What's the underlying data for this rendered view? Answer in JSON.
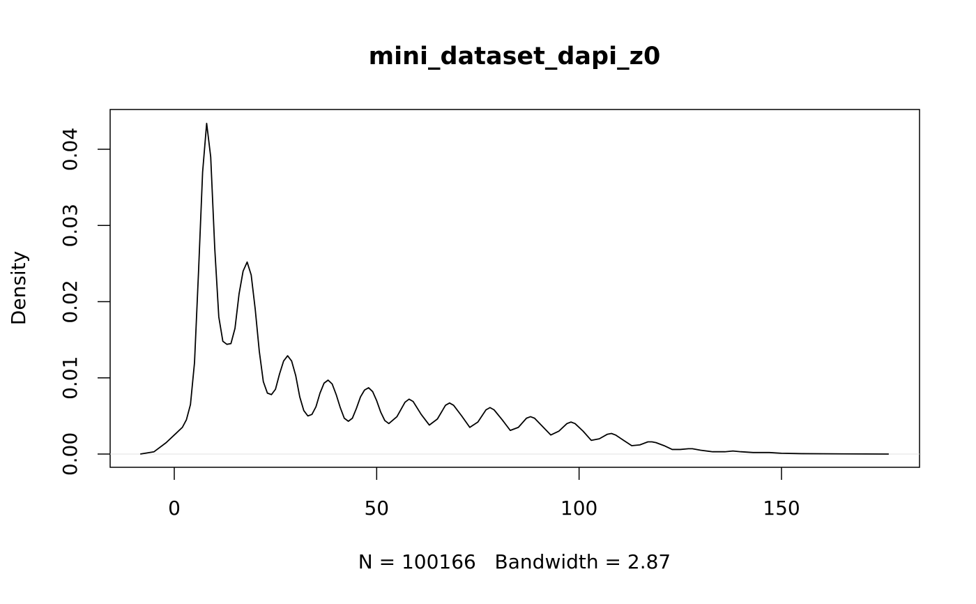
{
  "chart_data": {
    "type": "line",
    "title": "mini_dataset_dapi_z0",
    "x_label": "N = 100166   Bandwidth = 2.87",
    "y_label": "Density",
    "color": "#000000",
    "zero_line": true,
    "zero_line_color": "#e0e0e0",
    "xlim": [
      -15.84,
      184.1
    ],
    "ylim": [
      -0.00174,
      0.04522
    ],
    "xticks": [
      0,
      50,
      100,
      150
    ],
    "yticks": [
      {
        "value": 0,
        "label": "0.00"
      },
      {
        "value": 0.01,
        "label": "0.01"
      },
      {
        "value": 0.02,
        "label": "0.02"
      },
      {
        "value": 0.03,
        "label": "0.03"
      },
      {
        "value": 0.04,
        "label": "0.04"
      }
    ],
    "series": [
      {
        "name": "density",
        "color": "#000000",
        "x": [
          -8.4,
          -5,
          -2,
          0,
          2,
          3,
          4,
          5,
          6,
          7,
          8,
          9,
          10,
          11,
          12,
          13,
          14,
          15,
          16,
          17,
          18,
          19,
          20,
          21,
          22,
          23,
          24,
          25,
          26,
          27,
          28,
          29,
          30,
          31,
          32,
          33,
          34,
          35,
          36,
          37,
          38,
          39,
          40,
          41,
          42,
          43,
          44,
          45,
          46,
          47,
          48,
          49,
          50,
          51,
          52,
          53,
          55,
          57,
          58,
          59,
          61,
          63,
          65,
          67,
          68,
          69,
          71,
          73,
          75,
          77,
          78,
          79,
          81,
          83,
          85,
          87,
          88,
          89,
          91,
          93,
          95,
          97,
          98,
          99,
          101,
          103,
          105,
          107,
          108,
          109,
          111,
          113,
          115,
          117,
          118,
          119,
          121,
          123,
          125,
          127,
          128,
          130,
          133,
          136,
          138,
          140,
          143,
          147,
          150,
          155,
          165,
          176.5
        ],
        "values": [
          0,
          0.0003,
          0.0015,
          0.0025,
          0.0035,
          0.0045,
          0.0065,
          0.012,
          0.024,
          0.037,
          0.0434,
          0.039,
          0.027,
          0.018,
          0.0148,
          0.0144,
          0.0145,
          0.0165,
          0.021,
          0.024,
          0.0252,
          0.0235,
          0.019,
          0.0135,
          0.0095,
          0.008,
          0.0078,
          0.0085,
          0.0105,
          0.0122,
          0.0129,
          0.0122,
          0.0103,
          0.0075,
          0.0057,
          0.005,
          0.0052,
          0.0062,
          0.008,
          0.0093,
          0.0097,
          0.0092,
          0.0078,
          0.0061,
          0.0047,
          0.0043,
          0.0047,
          0.006,
          0.0075,
          0.0084,
          0.0087,
          0.0082,
          0.007,
          0.0055,
          0.0044,
          0.004,
          0.0049,
          0.0068,
          0.0072,
          0.0069,
          0.0052,
          0.0038,
          0.0046,
          0.0064,
          0.0067,
          0.0064,
          0.005,
          0.0035,
          0.0042,
          0.0058,
          0.0061,
          0.0058,
          0.0045,
          0.0031,
          0.0035,
          0.0047,
          0.0049,
          0.0047,
          0.0036,
          0.0025,
          0.003,
          0.004,
          0.0042,
          0.004,
          0.003,
          0.0018,
          0.002,
          0.0026,
          0.0027,
          0.0025,
          0.0018,
          0.0011,
          0.0012,
          0.0016,
          0.0016,
          0.0015,
          0.0011,
          0.0006,
          0.0006,
          0.0007,
          0.0007,
          0.0005,
          0.0003,
          0.0003,
          0.0004,
          0.0003,
          0.0002,
          0.0002,
          0.0001,
          5e-05,
          2e-05,
          0
        ]
      }
    ]
  }
}
